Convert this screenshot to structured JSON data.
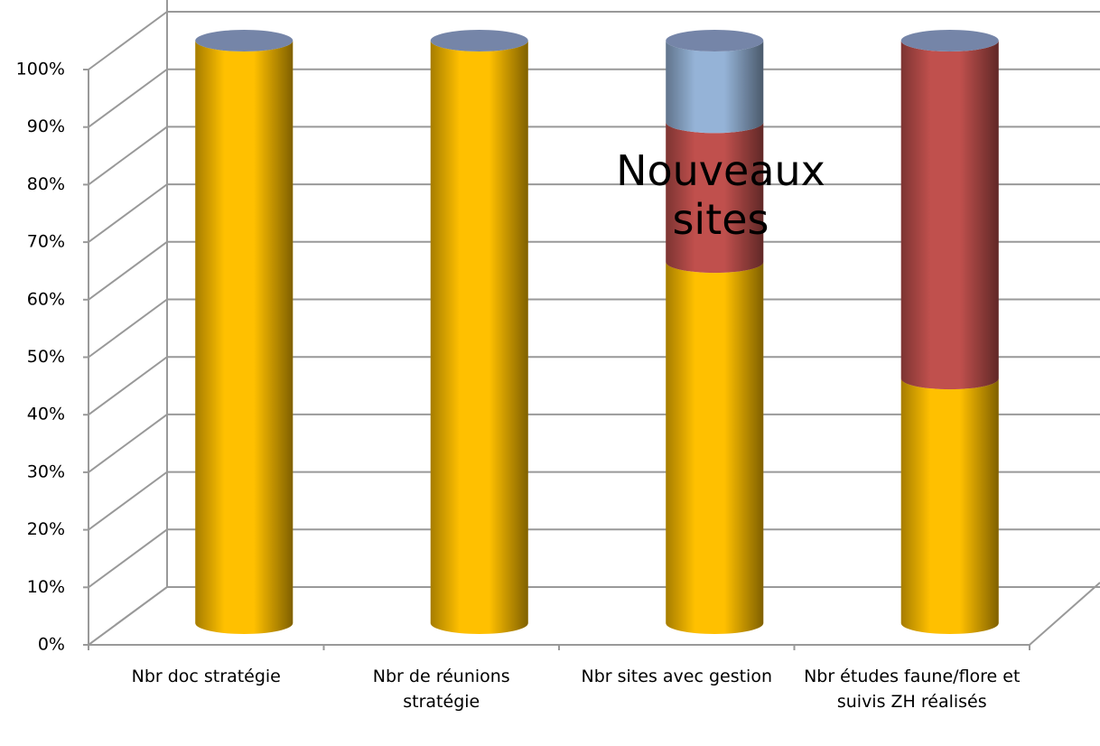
{
  "chart_data": {
    "type": "bar3d_stacked",
    "categories": [
      "Nbr doc stratégie",
      "Nbr de réunions stratégie",
      "Nbr sites avec gestion",
      "Nbr études faune/flore et suivis ZH réalisés"
    ],
    "series": [
      {
        "color": "#FFC000",
        "values": [
          100,
          100,
          62,
          42
        ]
      },
      {
        "color": "#C0504D",
        "values": [
          0,
          0,
          24,
          58
        ]
      },
      {
        "color": "#95B3D7",
        "values": [
          0,
          0,
          14,
          0
        ]
      }
    ],
    "ylim": [
      0,
      100
    ],
    "yticks": [
      {
        "value": 0,
        "label": "0%"
      },
      {
        "value": 10,
        "label": "10%"
      },
      {
        "value": 20,
        "label": "20%"
      },
      {
        "value": 30,
        "label": "30%"
      },
      {
        "value": 40,
        "label": "40%"
      },
      {
        "value": 50,
        "label": "50%"
      },
      {
        "value": 60,
        "label": "60%"
      },
      {
        "value": 70,
        "label": "70%"
      },
      {
        "value": 80,
        "label": "80%"
      },
      {
        "value": 90,
        "label": "90%"
      },
      {
        "value": 100,
        "label": "100%"
      }
    ],
    "grid": true,
    "annotation": "Nouveaux sites"
  }
}
